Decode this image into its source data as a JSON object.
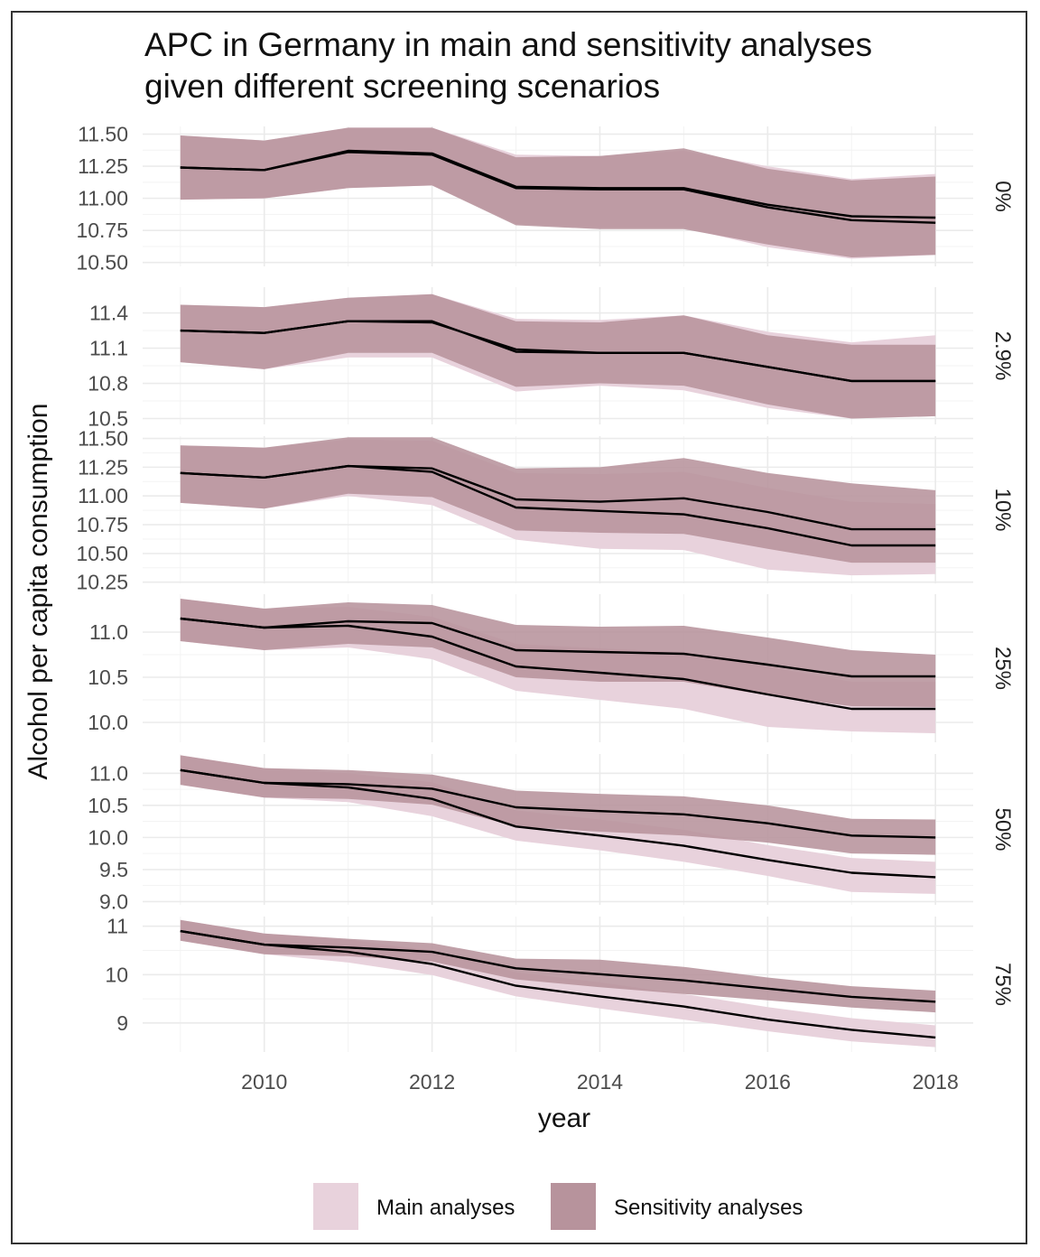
{
  "chart_data": {
    "type": "line",
    "title_lines": [
      "APC in Germany in main and sensitivity analyses",
      "given different screening scenarios"
    ],
    "xlabel": "year",
    "ylabel": "Alcohol per capita consumption",
    "x": [
      2009,
      2010,
      2011,
      2012,
      2013,
      2014,
      2015,
      2016,
      2017,
      2018
    ],
    "x_ticks": [
      2010,
      2012,
      2014,
      2016,
      2018
    ],
    "xlim": [
      2008.55,
      2018.45
    ],
    "colors": {
      "main": "#e8d2dc",
      "sensitivity": "#b7939c",
      "line": "#000000",
      "grid": "#ebebeb"
    },
    "legend": {
      "position": "bottom",
      "entries": [
        {
          "key": "main",
          "label": "Main analyses"
        },
        {
          "key": "sensitivity",
          "label": "Sensitivity analyses"
        }
      ]
    },
    "panels": [
      {
        "strip": "0%",
        "ylim": [
          10.47,
          11.56
        ],
        "yticks": [
          10.5,
          10.75,
          11.0,
          11.25,
          11.5
        ],
        "ytick_labels": [
          "10.50",
          "10.75",
          "11.00",
          "11.25",
          "11.50"
        ],
        "main": {
          "mean": [
            11.24,
            11.22,
            11.37,
            11.35,
            11.09,
            11.08,
            11.08,
            10.95,
            10.86,
            10.85
          ],
          "lower": [
            10.99,
            11.0,
            11.08,
            11.1,
            10.8,
            10.77,
            10.77,
            10.62,
            10.53,
            10.56
          ],
          "upper": [
            11.49,
            11.45,
            11.55,
            11.55,
            11.34,
            11.33,
            11.37,
            11.25,
            11.15,
            11.19
          ]
        },
        "sensitivity": {
          "mean": [
            11.24,
            11.22,
            11.36,
            11.34,
            11.08,
            11.07,
            11.07,
            10.93,
            10.83,
            10.81
          ],
          "lower": [
            10.99,
            11.0,
            11.08,
            11.1,
            10.79,
            10.76,
            10.76,
            10.64,
            10.54,
            10.56
          ],
          "upper": [
            11.49,
            11.45,
            11.55,
            11.55,
            11.32,
            11.33,
            11.39,
            11.23,
            11.14,
            11.17
          ]
        }
      },
      {
        "strip": "2.9%",
        "ylim": [
          10.45,
          11.62
        ],
        "yticks": [
          10.5,
          10.8,
          11.1,
          11.4
        ],
        "ytick_labels": [
          "10.5",
          "10.8",
          "11.1",
          "11.4"
        ],
        "main": {
          "mean": [
            11.25,
            11.23,
            11.33,
            11.33,
            11.07,
            11.06,
            11.06,
            10.94,
            10.82,
            10.82
          ],
          "lower": [
            10.98,
            10.92,
            11.02,
            11.02,
            10.73,
            10.78,
            10.74,
            10.59,
            10.5,
            10.52
          ],
          "upper": [
            11.47,
            11.45,
            11.53,
            11.56,
            11.35,
            11.34,
            11.38,
            11.24,
            11.15,
            11.21
          ]
        },
        "sensitivity": {
          "mean": [
            11.25,
            11.23,
            11.33,
            11.32,
            11.09,
            11.06,
            11.06,
            10.94,
            10.82,
            10.82
          ],
          "lower": [
            10.98,
            10.92,
            11.06,
            11.06,
            10.77,
            10.8,
            10.78,
            10.62,
            10.5,
            10.52
          ],
          "upper": [
            11.47,
            11.45,
            11.53,
            11.56,
            11.33,
            11.32,
            11.38,
            11.21,
            11.13,
            11.13
          ]
        }
      },
      {
        "strip": "10%",
        "ylim": [
          10.24,
          11.52
        ],
        "yticks": [
          10.25,
          10.5,
          10.75,
          11.0,
          11.25,
          11.5
        ],
        "ytick_labels": [
          "10.25",
          "10.50",
          "10.75",
          "11.00",
          "11.25",
          "11.50"
        ],
        "main": {
          "mean": [
            11.2,
            11.16,
            11.26,
            11.21,
            10.9,
            10.87,
            10.84,
            10.72,
            10.57,
            10.57
          ],
          "lower": [
            10.94,
            10.89,
            11.0,
            10.92,
            10.62,
            10.54,
            10.53,
            10.36,
            10.31,
            10.32
          ],
          "upper": [
            11.44,
            11.42,
            11.49,
            11.48,
            11.2,
            11.19,
            11.21,
            11.07,
            10.95,
            10.93
          ]
        },
        "sensitivity": {
          "mean": [
            11.2,
            11.16,
            11.26,
            11.24,
            10.97,
            10.95,
            10.98,
            10.86,
            10.71,
            10.71
          ],
          "lower": [
            10.94,
            10.89,
            11.02,
            10.99,
            10.7,
            10.68,
            10.67,
            10.54,
            10.42,
            10.42
          ],
          "upper": [
            11.44,
            11.42,
            11.51,
            11.51,
            11.24,
            11.25,
            11.33,
            11.2,
            11.11,
            11.05
          ]
        }
      },
      {
        "strip": "25%",
        "ylim": [
          9.78,
          11.42
        ],
        "yticks": [
          10.0,
          10.5,
          11.0
        ],
        "ytick_labels": [
          "10.0",
          "10.5",
          "11.0"
        ],
        "main": {
          "mean": [
            11.15,
            11.05,
            11.07,
            10.95,
            10.62,
            10.55,
            10.48,
            10.31,
            10.15,
            10.15
          ],
          "lower": [
            10.9,
            10.8,
            10.83,
            10.7,
            10.35,
            10.25,
            10.15,
            9.95,
            9.9,
            9.88
          ],
          "upper": [
            11.37,
            11.26,
            11.28,
            11.17,
            10.87,
            10.82,
            10.78,
            10.62,
            10.45,
            10.45
          ]
        },
        "sensitivity": {
          "mean": [
            11.15,
            11.05,
            11.12,
            11.1,
            10.8,
            10.78,
            10.76,
            10.64,
            10.51,
            10.51
          ],
          "lower": [
            10.9,
            10.8,
            10.87,
            10.83,
            10.5,
            10.45,
            10.45,
            10.3,
            10.18,
            10.17
          ],
          "upper": [
            11.37,
            11.26,
            11.33,
            11.3,
            11.08,
            11.06,
            11.07,
            10.94,
            10.8,
            10.75
          ]
        }
      },
      {
        "strip": "50%",
        "ylim": [
          8.95,
          11.3
        ],
        "yticks": [
          9.0,
          9.5,
          10.0,
          10.5,
          11.0
        ],
        "ytick_labels": [
          "9.0",
          "9.5",
          "10.0",
          "10.5",
          "11.0"
        ],
        "main": {
          "mean": [
            11.05,
            10.85,
            10.78,
            10.6,
            10.17,
            10.03,
            9.87,
            9.65,
            9.45,
            9.38
          ],
          "lower": [
            10.82,
            10.62,
            10.55,
            10.33,
            9.95,
            9.8,
            9.62,
            9.4,
            9.15,
            9.12
          ],
          "upper": [
            11.28,
            11.08,
            11.0,
            10.86,
            10.42,
            10.28,
            10.12,
            9.88,
            9.68,
            9.62
          ]
        },
        "sensitivity": {
          "mean": [
            11.05,
            10.85,
            10.83,
            10.76,
            10.47,
            10.41,
            10.36,
            10.22,
            10.03,
            10.0
          ],
          "lower": [
            10.82,
            10.62,
            10.6,
            10.51,
            10.17,
            10.09,
            10.03,
            9.92,
            9.75,
            9.73
          ],
          "upper": [
            11.28,
            11.08,
            11.05,
            10.98,
            10.73,
            10.68,
            10.64,
            10.5,
            10.29,
            10.28
          ]
        }
      },
      {
        "strip": "75%",
        "ylim": [
          8.4,
          11.2
        ],
        "yticks": [
          9,
          10,
          11
        ],
        "ytick_labels": [
          "9",
          "10",
          "11"
        ],
        "main": {
          "mean": [
            10.9,
            10.62,
            10.47,
            10.22,
            9.77,
            9.55,
            9.34,
            9.07,
            8.86,
            8.7
          ],
          "lower": [
            10.7,
            10.42,
            10.25,
            9.99,
            9.55,
            9.3,
            9.07,
            8.83,
            8.62,
            8.5
          ],
          "upper": [
            11.13,
            10.85,
            10.72,
            10.5,
            10.05,
            9.84,
            9.6,
            9.33,
            9.1,
            8.95
          ]
        },
        "sensitivity": {
          "mean": [
            10.9,
            10.62,
            10.56,
            10.47,
            10.13,
            10.01,
            9.88,
            9.71,
            9.54,
            9.44
          ],
          "lower": [
            10.7,
            10.42,
            10.38,
            10.27,
            9.9,
            9.74,
            9.6,
            9.47,
            9.32,
            9.22
          ],
          "upper": [
            11.13,
            10.85,
            10.74,
            10.65,
            10.33,
            10.31,
            10.16,
            9.94,
            9.76,
            9.67
          ]
        }
      }
    ]
  }
}
